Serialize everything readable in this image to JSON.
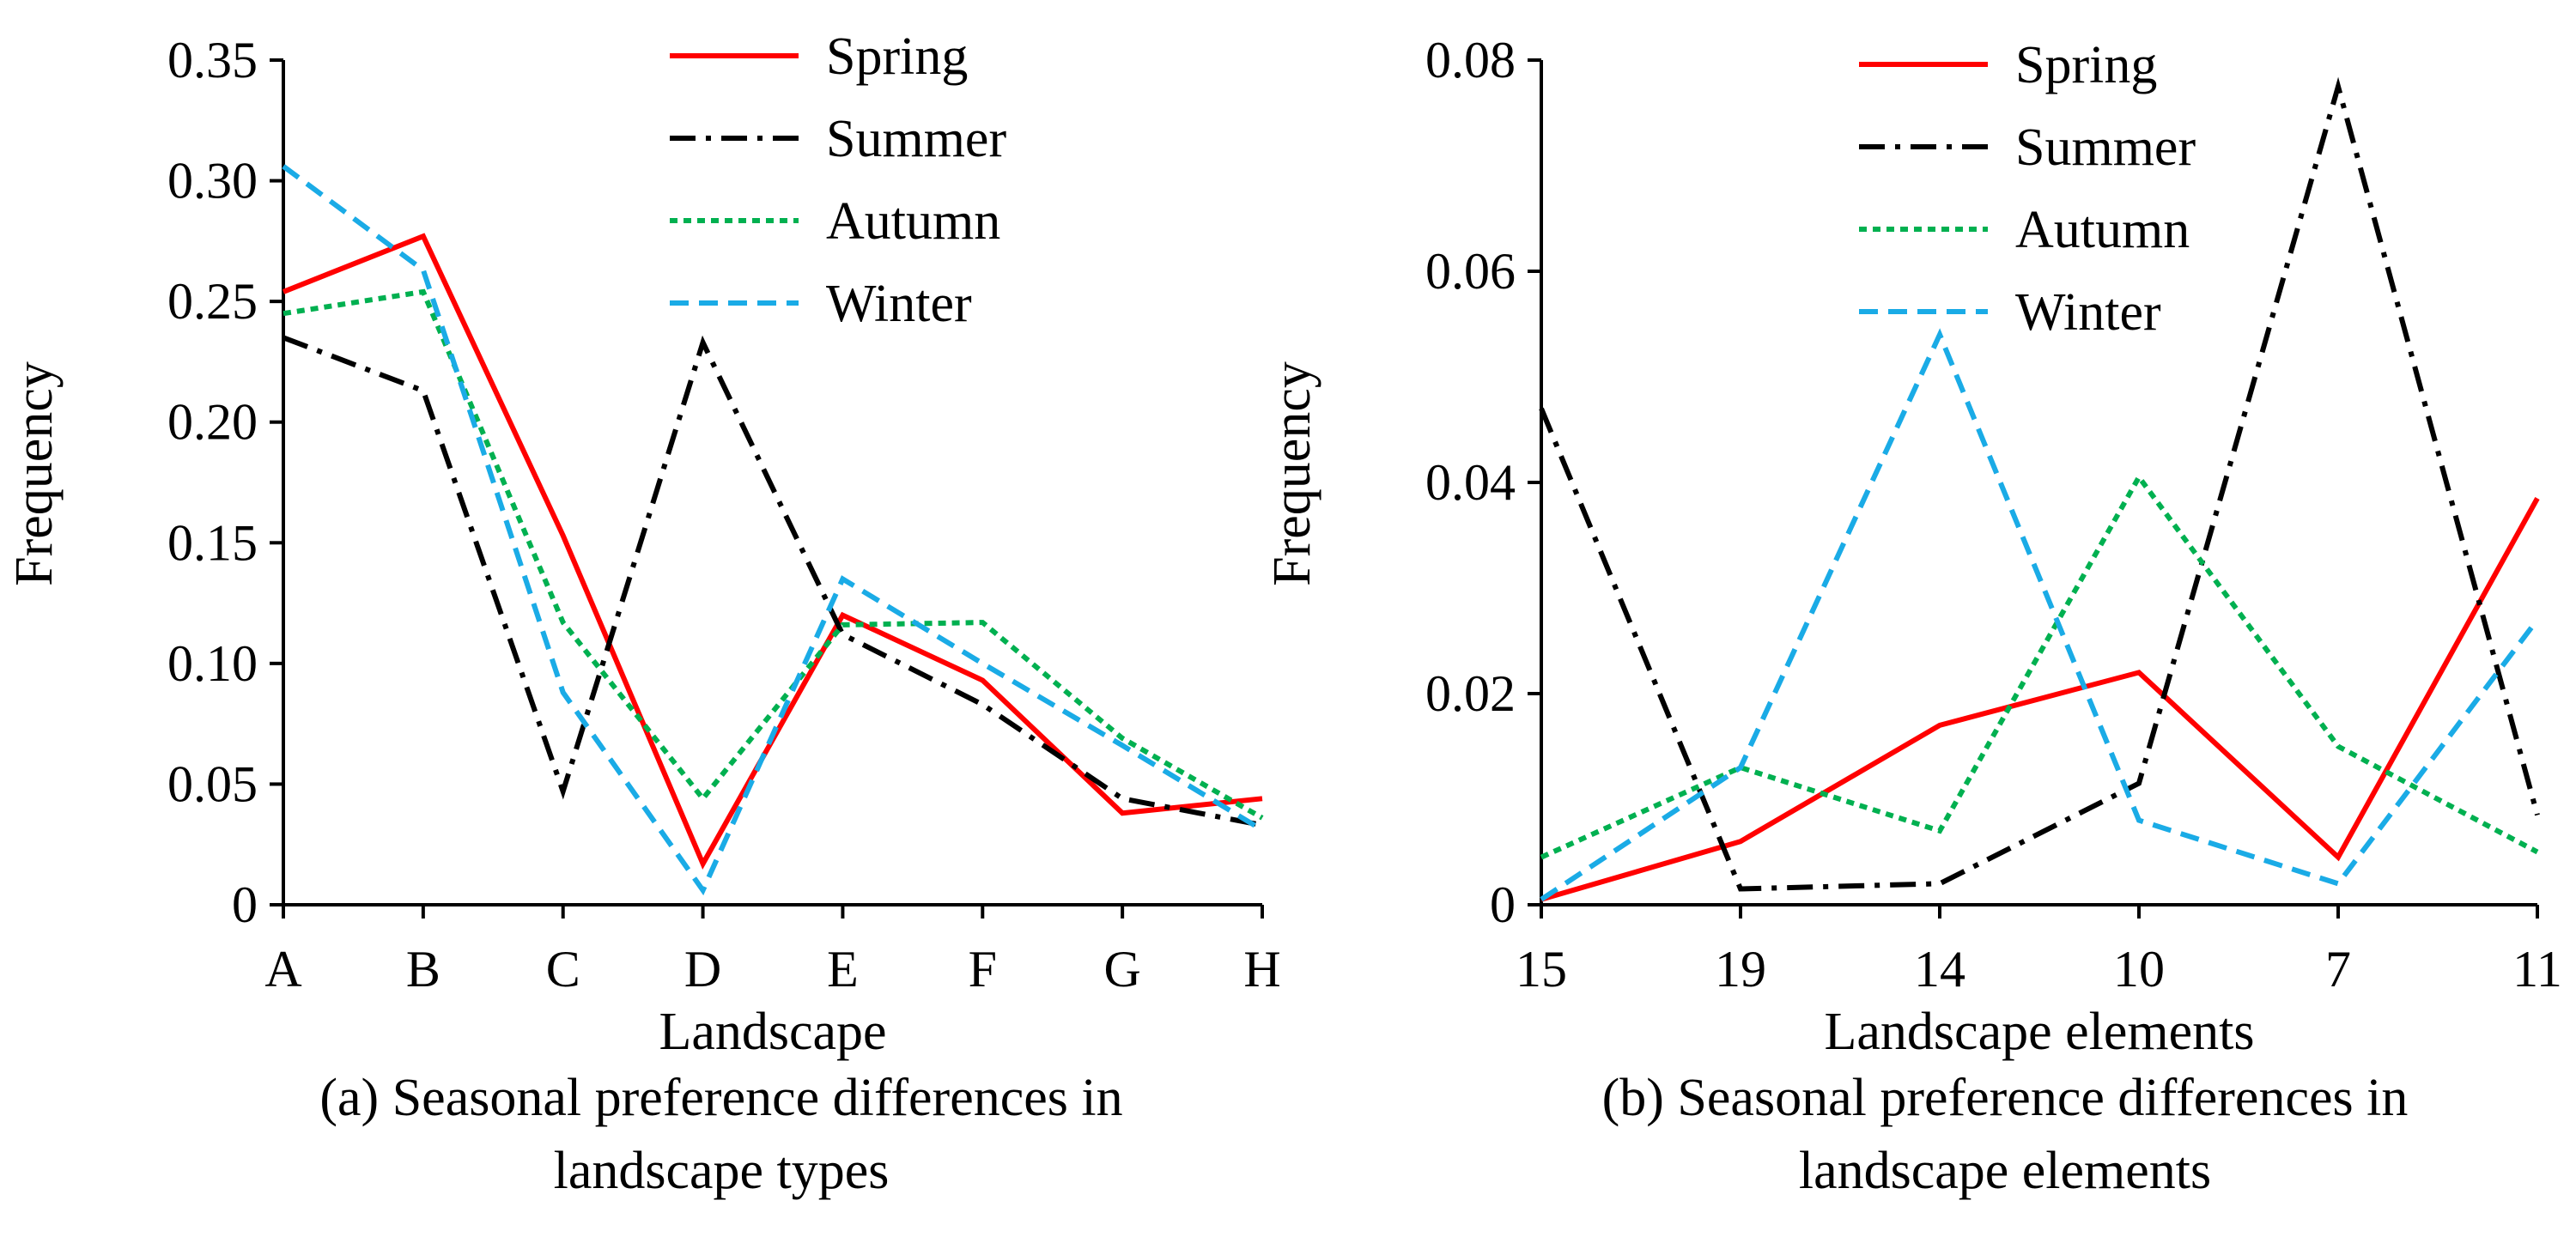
{
  "chart_data": [
    {
      "type": "line",
      "xlabel": "Landscape",
      "ylabel": "Frequency",
      "categories": [
        "A",
        "B",
        "C",
        "D",
        "E",
        "F",
        "G",
        "H"
      ],
      "ylim": [
        0,
        0.35
      ],
      "yticks": [
        0,
        0.05,
        0.1,
        0.15,
        0.2,
        0.25,
        0.3,
        0.35
      ],
      "ytick_labels": [
        "0",
        "0.05",
        "0.10",
        "0.15",
        "0.20",
        "0.25",
        "0.30",
        "0.35"
      ],
      "caption_line1": "(a) Seasonal preference differences in",
      "caption_line2": "landscape types",
      "legend_position": "top-right",
      "grid": false,
      "series": [
        {
          "name": "Spring",
          "color": "#ff0000",
          "style": "solid",
          "values": [
            0.254,
            0.277,
            0.153,
            0.017,
            0.12,
            0.093,
            0.038,
            0.044
          ]
        },
        {
          "name": "Summer",
          "color": "#000000",
          "style": "dashdot",
          "values": [
            0.235,
            0.213,
            0.047,
            0.233,
            0.112,
            0.083,
            0.044,
            0.033
          ]
        },
        {
          "name": "Autumn",
          "color": "#00b050",
          "style": "dotted",
          "values": [
            0.245,
            0.254,
            0.117,
            0.044,
            0.116,
            0.117,
            0.069,
            0.036
          ]
        },
        {
          "name": "Winter",
          "color": "#1aabe6",
          "style": "dashed",
          "values": [
            0.306,
            0.263,
            0.088,
            0.006,
            0.135,
            0.1,
            0.066,
            0.031
          ]
        }
      ]
    },
    {
      "type": "line",
      "xlabel": "Landscape elements",
      "ylabel": "Frequency",
      "categories": [
        "15",
        "19",
        "14",
        "10",
        "7",
        "11"
      ],
      "ylim": [
        0,
        0.08
      ],
      "yticks": [
        0,
        0.02,
        0.04,
        0.06,
        0.08
      ],
      "ytick_labels": [
        "0",
        "0.02",
        "0.04",
        "0.06",
        "0.08"
      ],
      "caption_line1": "(b) Seasonal preference differences in",
      "caption_line2": "landscape elements",
      "legend_position": "top-right",
      "grid": false,
      "series": [
        {
          "name": "Spring",
          "color": "#ff0000",
          "style": "solid",
          "values": [
            0.0005,
            0.006,
            0.017,
            0.022,
            0.0045,
            0.0385
          ]
        },
        {
          "name": "Summer",
          "color": "#000000",
          "style": "dashdot",
          "values": [
            0.047,
            0.0015,
            0.002,
            0.0115,
            0.0775,
            0.0085
          ]
        },
        {
          "name": "Autumn",
          "color": "#00b050",
          "style": "dotted",
          "values": [
            0.0045,
            0.013,
            0.007,
            0.0405,
            0.015,
            0.005
          ]
        },
        {
          "name": "Winter",
          "color": "#1aabe6",
          "style": "dashed",
          "values": [
            0.0005,
            0.013,
            0.054,
            0.008,
            0.002,
            0.027
          ]
        }
      ]
    }
  ]
}
